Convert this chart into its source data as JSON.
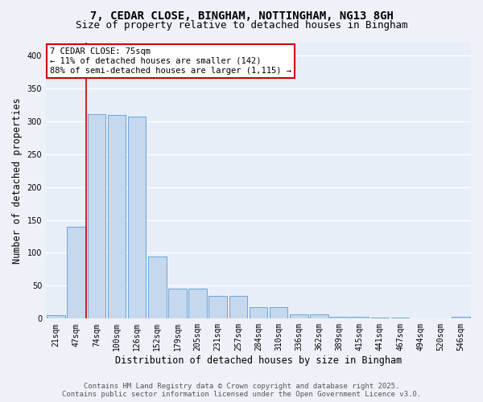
{
  "title_line1": "7, CEDAR CLOSE, BINGHAM, NOTTINGHAM, NG13 8GH",
  "title_line2": "Size of property relative to detached houses in Bingham",
  "xlabel": "Distribution of detached houses by size in Bingham",
  "ylabel": "Number of detached properties",
  "categories": [
    "21sqm",
    "47sqm",
    "74sqm",
    "100sqm",
    "126sqm",
    "152sqm",
    "179sqm",
    "205sqm",
    "231sqm",
    "257sqm",
    "284sqm",
    "310sqm",
    "336sqm",
    "362sqm",
    "389sqm",
    "415sqm",
    "441sqm",
    "467sqm",
    "494sqm",
    "520sqm",
    "546sqm"
  ],
  "values": [
    5,
    140,
    311,
    309,
    307,
    95,
    46,
    46,
    35,
    35,
    17,
    17,
    7,
    7,
    3,
    3,
    2,
    2,
    1,
    1,
    3
  ],
  "bar_color": "#c5d8ed",
  "bar_edge_color": "#5b9bd5",
  "highlight_bar_index": 2,
  "highlight_line_color": "#cc0000",
  "ylim": [
    0,
    420
  ],
  "yticks": [
    0,
    50,
    100,
    150,
    200,
    250,
    300,
    350,
    400
  ],
  "annotation_text": "7 CEDAR CLOSE: 75sqm\n← 11% of detached houses are smaller (142)\n88% of semi-detached houses are larger (1,115) →",
  "annotation_box_color": "#ffffff",
  "annotation_border_color": "#cc0000",
  "footer_line1": "Contains HM Land Registry data © Crown copyright and database right 2025.",
  "footer_line2": "Contains public sector information licensed under the Open Government Licence v3.0.",
  "background_color": "#eef2f8",
  "plot_bg_color": "#e8eef8",
  "grid_color": "#ffffff",
  "title_fontsize": 10,
  "subtitle_fontsize": 9,
  "axis_label_fontsize": 8.5,
  "tick_fontsize": 7,
  "footer_fontsize": 6.5,
  "annotation_fontsize": 7.5
}
